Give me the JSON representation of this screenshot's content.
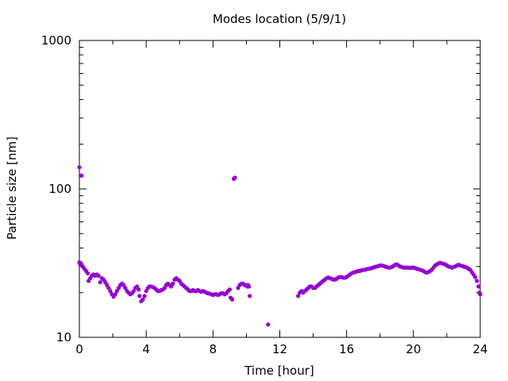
{
  "chart_data": {
    "type": "scatter",
    "title": "Modes location (5/9/1)",
    "xlabel": "Time [hour]",
    "ylabel": "Particle size [nm]",
    "xlim": [
      0,
      24
    ],
    "ylim": [
      10,
      1000
    ],
    "yscale": "log",
    "grid": false,
    "legend": "none",
    "marker_color": "#9400d3",
    "x_ticks": [
      0,
      4,
      8,
      12,
      16,
      20,
      24
    ],
    "y_ticks": [
      10,
      100,
      1000
    ],
    "series": [
      {
        "points": [
          [
            0.0,
            140
          ],
          [
            0.08,
            123
          ],
          [
            0.13,
            123
          ],
          [
            0.0,
            32
          ],
          [
            0.05,
            31
          ],
          [
            0.1,
            31.5
          ],
          [
            0.15,
            30.5
          ],
          [
            0.2,
            30
          ],
          [
            0.3,
            29
          ],
          [
            0.4,
            28
          ],
          [
            0.5,
            27
          ],
          [
            0.55,
            24
          ],
          [
            0.65,
            25
          ],
          [
            0.75,
            26
          ],
          [
            0.85,
            26.5
          ],
          [
            0.95,
            26
          ],
          [
            1.05,
            26.5
          ],
          [
            1.15,
            26
          ],
          [
            1.25,
            23.5
          ],
          [
            1.35,
            25
          ],
          [
            1.45,
            24.5
          ],
          [
            1.55,
            23.5
          ],
          [
            1.65,
            22.5
          ],
          [
            1.75,
            21.5
          ],
          [
            1.85,
            20.5
          ],
          [
            1.95,
            19.5
          ],
          [
            2.05,
            18.8
          ],
          [
            2.15,
            19.5
          ],
          [
            2.25,
            20.5
          ],
          [
            2.35,
            21.5
          ],
          [
            2.45,
            22.5
          ],
          [
            2.55,
            23
          ],
          [
            2.65,
            22.5
          ],
          [
            2.75,
            21.5
          ],
          [
            2.85,
            20.5
          ],
          [
            2.95,
            20
          ],
          [
            3.05,
            19.5
          ],
          [
            3.15,
            19.8
          ],
          [
            3.25,
            20.5
          ],
          [
            3.35,
            21.5
          ],
          [
            3.45,
            22
          ],
          [
            3.55,
            21
          ],
          [
            3.6,
            19
          ],
          [
            3.7,
            17.5
          ],
          [
            3.8,
            18
          ],
          [
            3.9,
            19
          ],
          [
            4.0,
            20.5
          ],
          [
            4.1,
            21.5
          ],
          [
            4.2,
            22
          ],
          [
            4.3,
            22
          ],
          [
            4.4,
            21.8
          ],
          [
            4.5,
            21.5
          ],
          [
            4.6,
            21
          ],
          [
            4.7,
            20.5
          ],
          [
            4.8,
            20.5
          ],
          [
            4.9,
            20.8
          ],
          [
            5.0,
            21
          ],
          [
            5.1,
            21.5
          ],
          [
            5.2,
            22.5
          ],
          [
            5.3,
            23
          ],
          [
            5.4,
            22.5
          ],
          [
            5.5,
            22
          ],
          [
            5.6,
            23
          ],
          [
            5.7,
            24.5
          ],
          [
            5.8,
            25
          ],
          [
            5.9,
            24.5
          ],
          [
            6.0,
            24
          ],
          [
            6.1,
            23
          ],
          [
            6.2,
            22.5
          ],
          [
            6.3,
            22
          ],
          [
            6.4,
            21.5
          ],
          [
            6.5,
            21
          ],
          [
            6.6,
            20.5
          ],
          [
            6.7,
            20.5
          ],
          [
            6.8,
            20.8
          ],
          [
            6.9,
            20.5
          ],
          [
            7.0,
            20.5
          ],
          [
            7.1,
            20.8
          ],
          [
            7.2,
            20.5
          ],
          [
            7.3,
            20.3
          ],
          [
            7.4,
            20.5
          ],
          [
            7.5,
            20.3
          ],
          [
            7.6,
            20
          ],
          [
            7.7,
            19.8
          ],
          [
            7.8,
            19.7
          ],
          [
            7.9,
            19.5
          ],
          [
            8.0,
            19.3
          ],
          [
            8.1,
            19.5
          ],
          [
            8.2,
            19.5
          ],
          [
            8.3,
            19.3
          ],
          [
            8.4,
            19.5
          ],
          [
            8.5,
            19.8
          ],
          [
            8.6,
            19.8
          ],
          [
            8.7,
            19.5
          ],
          [
            8.8,
            19.8
          ],
          [
            8.9,
            20.5
          ],
          [
            9.0,
            21
          ],
          [
            9.05,
            18.5
          ],
          [
            9.15,
            18
          ],
          [
            9.25,
            117
          ],
          [
            9.32,
            119
          ],
          [
            9.5,
            21.5
          ],
          [
            9.6,
            22.5
          ],
          [
            9.7,
            23
          ],
          [
            9.8,
            23
          ],
          [
            9.9,
            22.5
          ],
          [
            10.0,
            22.5
          ],
          [
            10.05,
            22
          ],
          [
            10.1,
            22.5
          ],
          [
            10.15,
            22
          ],
          [
            10.2,
            19
          ],
          [
            11.3,
            12.2
          ],
          [
            13.1,
            19
          ],
          [
            13.2,
            20
          ],
          [
            13.3,
            20.5
          ],
          [
            13.4,
            20
          ],
          [
            13.5,
            20.5
          ],
          [
            13.6,
            21
          ],
          [
            13.7,
            21.5
          ],
          [
            13.8,
            22
          ],
          [
            13.9,
            22
          ],
          [
            14.0,
            21.5
          ],
          [
            14.1,
            21.5
          ],
          [
            14.2,
            22
          ],
          [
            14.3,
            22.5
          ],
          [
            14.4,
            23
          ],
          [
            14.5,
            23.5
          ],
          [
            14.6,
            24
          ],
          [
            14.7,
            24.5
          ],
          [
            14.8,
            25
          ],
          [
            14.9,
            25.3
          ],
          [
            15.0,
            25
          ],
          [
            15.1,
            24.8
          ],
          [
            15.2,
            24.5
          ],
          [
            15.3,
            24.5
          ],
          [
            15.4,
            24.8
          ],
          [
            15.5,
            25.3
          ],
          [
            15.6,
            25.5
          ],
          [
            15.7,
            25.5
          ],
          [
            15.8,
            25.2
          ],
          [
            15.9,
            25.2
          ],
          [
            16.0,
            25.5
          ],
          [
            16.1,
            26
          ],
          [
            16.2,
            26.5
          ],
          [
            16.3,
            27
          ],
          [
            16.4,
            27.3
          ],
          [
            16.5,
            27.5
          ],
          [
            16.6,
            27.8
          ],
          [
            16.7,
            28
          ],
          [
            16.8,
            28
          ],
          [
            16.9,
            28.3
          ],
          [
            17.0,
            28.5
          ],
          [
            17.1,
            28.5
          ],
          [
            17.2,
            28.8
          ],
          [
            17.3,
            29
          ],
          [
            17.4,
            29
          ],
          [
            17.5,
            29.3
          ],
          [
            17.6,
            29.5
          ],
          [
            17.7,
            29.8
          ],
          [
            17.8,
            30
          ],
          [
            17.9,
            30.2
          ],
          [
            18.0,
            30.5
          ],
          [
            18.1,
            30.5
          ],
          [
            18.2,
            30.3
          ],
          [
            18.3,
            30
          ],
          [
            18.4,
            29.8
          ],
          [
            18.5,
            29.5
          ],
          [
            18.6,
            29.5
          ],
          [
            18.7,
            29.8
          ],
          [
            18.8,
            30.2
          ],
          [
            18.9,
            30.8
          ],
          [
            19.0,
            31
          ],
          [
            19.1,
            30.5
          ],
          [
            19.2,
            30
          ],
          [
            19.3,
            29.8
          ],
          [
            19.4,
            29.5
          ],
          [
            19.5,
            29.5
          ],
          [
            19.6,
            29.5
          ],
          [
            19.7,
            29.5
          ],
          [
            19.8,
            29.3
          ],
          [
            19.9,
            29.5
          ],
          [
            20.0,
            29.5
          ],
          [
            20.1,
            29.3
          ],
          [
            20.2,
            29
          ],
          [
            20.3,
            28.8
          ],
          [
            20.4,
            28.5
          ],
          [
            20.5,
            28.3
          ],
          [
            20.6,
            28
          ],
          [
            20.7,
            27.5
          ],
          [
            20.8,
            27.3
          ],
          [
            20.9,
            27.5
          ],
          [
            21.0,
            28
          ],
          [
            21.1,
            28.5
          ],
          [
            21.2,
            29.5
          ],
          [
            21.3,
            30.5
          ],
          [
            21.4,
            31
          ],
          [
            21.5,
            31.5
          ],
          [
            21.6,
            31.8
          ],
          [
            21.7,
            31.5
          ],
          [
            21.8,
            31.3
          ],
          [
            21.9,
            31
          ],
          [
            22.0,
            30.5
          ],
          [
            22.1,
            30
          ],
          [
            22.2,
            29.8
          ],
          [
            22.3,
            29.5
          ],
          [
            22.4,
            29.8
          ],
          [
            22.5,
            30
          ],
          [
            22.6,
            30.5
          ],
          [
            22.7,
            30.8
          ],
          [
            22.8,
            30.5
          ],
          [
            22.9,
            30.3
          ],
          [
            23.0,
            30
          ],
          [
            23.1,
            29.8
          ],
          [
            23.2,
            29.5
          ],
          [
            23.3,
            29
          ],
          [
            23.4,
            28.5
          ],
          [
            23.5,
            27.5
          ],
          [
            23.6,
            26.5
          ],
          [
            23.7,
            25.5
          ],
          [
            23.8,
            24
          ],
          [
            23.9,
            22
          ],
          [
            23.95,
            20
          ],
          [
            24.0,
            19.5
          ]
        ]
      }
    ]
  }
}
